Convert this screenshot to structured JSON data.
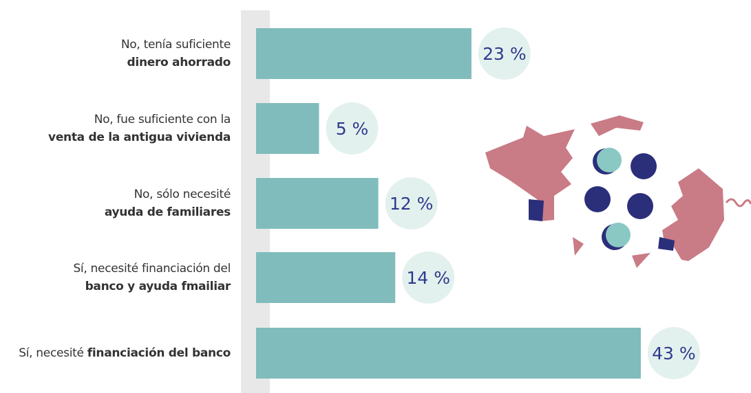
{
  "chart_data": {
    "type": "bar",
    "categories": [
      [
        "No, tenía suficiente",
        "dinero ahorrado"
      ],
      [
        "No, fue suficiente con la",
        "venta de la antigua vivienda"
      ],
      [
        "No, sólo necesité",
        "ayuda de familiares"
      ],
      [
        "Sí, necesité financiación del",
        "banco y ayuda fmailiar"
      ],
      [
        "Sí, necesité ",
        "financiación del banco"
      ]
    ],
    "values": [
      23,
      5,
      12,
      14,
      43
    ],
    "value_labels": [
      "23 %",
      "5 %",
      "12 %",
      "14 %",
      "43 %"
    ],
    "color": "#80bcbc"
  }
}
